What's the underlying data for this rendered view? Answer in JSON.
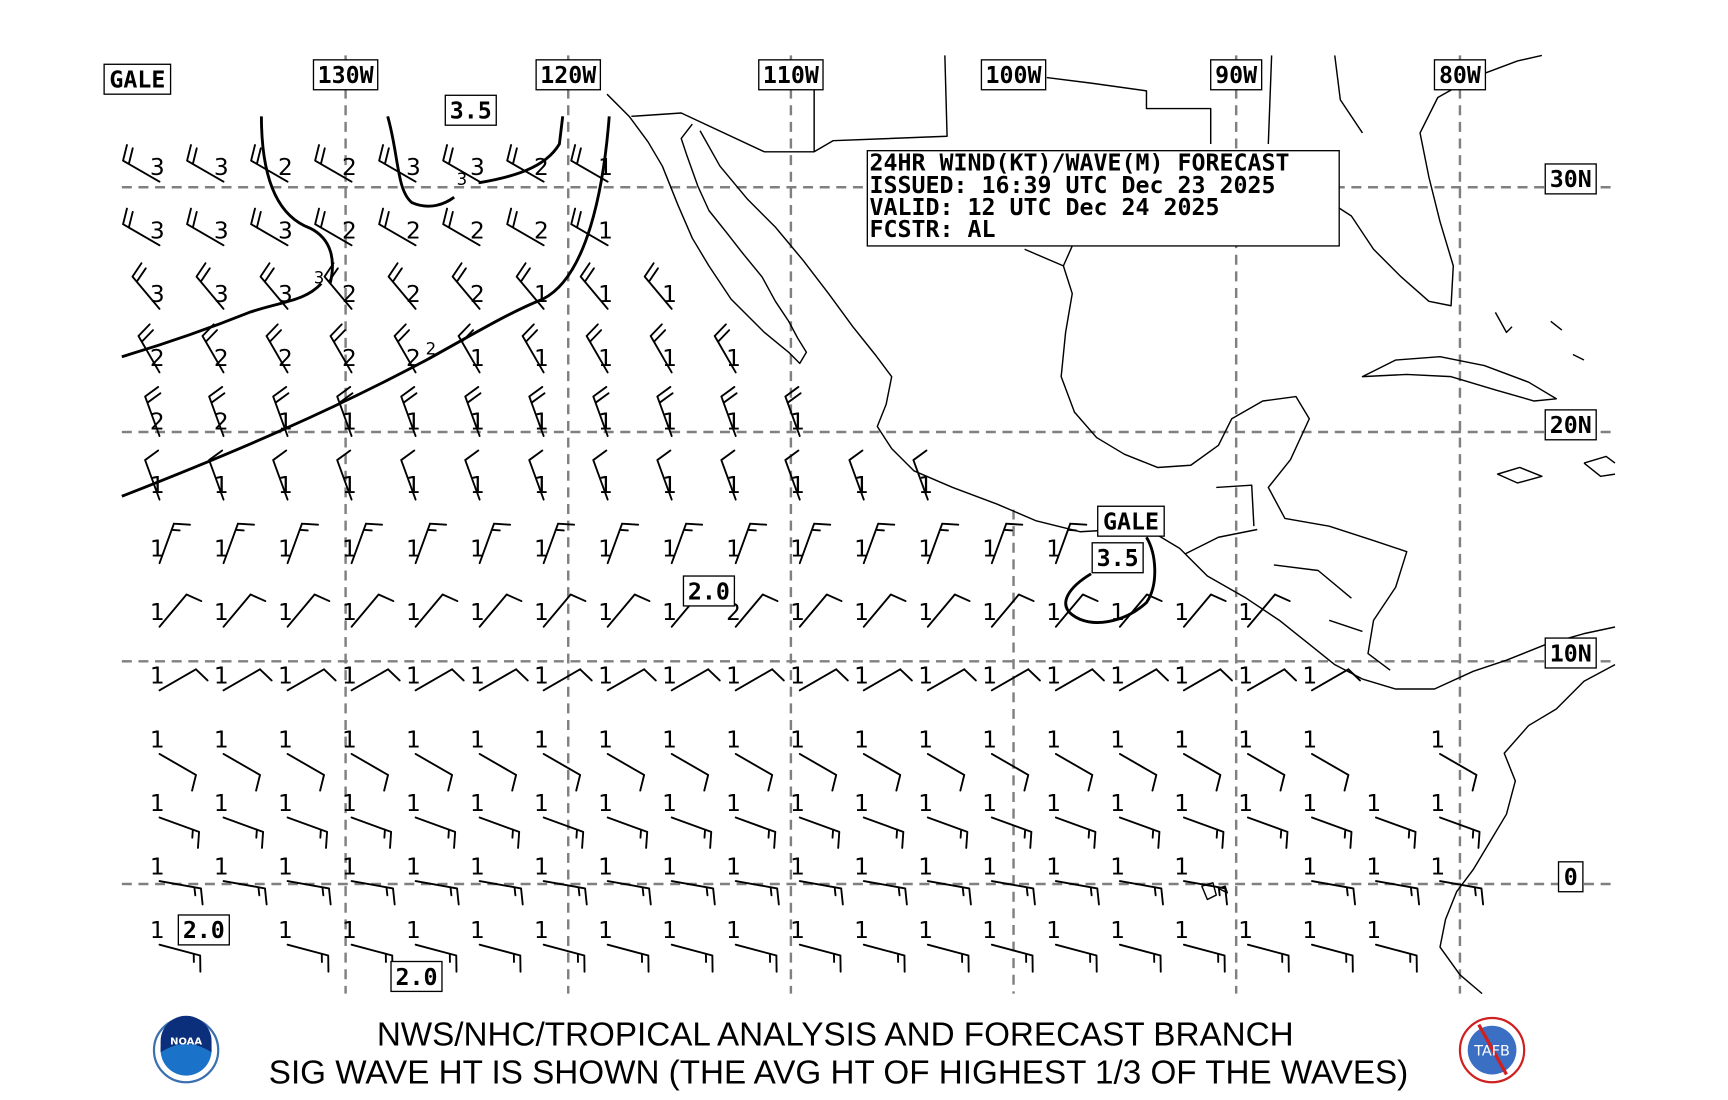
{
  "forecast_box": {
    "line1": "24HR WIND(KT)/WAVE(M) FORECAST",
    "line2": "ISSUED: 16:39 UTC Dec 23 2025",
    "line3": "VALID: 12 UTC Dec 24 2025",
    "line4": "FCSTR: AL"
  },
  "lon_labels": [
    "130W",
    "120W",
    "110W",
    "100W",
    "90W",
    "80W"
  ],
  "lat_labels": [
    "30N",
    "20N",
    "10N",
    "0"
  ],
  "annotations": {
    "gale_nw": "GALE",
    "wave_nw": "3.5",
    "gale_tehuantepec": "GALE",
    "wave_tehuantepec": "3.5",
    "wave_mid": "2.0",
    "wave_sw": "2.0",
    "wave_s": "2.0",
    "contour_label_1": "3",
    "contour_label_2": "3",
    "contour_label_3": "2"
  },
  "wave_heights_m": [
    [
      3,
      3,
      2,
      2,
      3,
      3,
      2,
      1,
      null,
      null,
      null,
      null,
      null,
      null,
      null,
      null,
      null,
      null,
      null,
      null,
      null
    ],
    [
      3,
      3,
      3,
      2,
      2,
      2,
      2,
      1,
      null,
      null,
      null,
      null,
      null,
      null,
      null,
      null,
      null,
      null,
      null,
      null,
      null
    ],
    [
      3,
      3,
      3,
      2,
      2,
      2,
      1,
      1,
      1,
      null,
      null,
      null,
      null,
      null,
      null,
      null,
      null,
      null,
      null,
      null,
      null
    ],
    [
      2,
      2,
      2,
      2,
      2,
      1,
      1,
      1,
      1,
      1,
      null,
      null,
      null,
      null,
      null,
      null,
      null,
      null,
      null,
      null,
      null
    ],
    [
      2,
      2,
      1,
      1,
      1,
      1,
      1,
      1,
      1,
      1,
      1,
      null,
      null,
      null,
      null,
      null,
      null,
      null,
      null,
      null,
      null
    ],
    [
      1,
      1,
      1,
      1,
      1,
      1,
      1,
      1,
      1,
      1,
      1,
      1,
      1,
      null,
      null,
      null,
      null,
      null,
      null,
      null,
      null
    ],
    [
      1,
      1,
      1,
      1,
      1,
      1,
      1,
      1,
      1,
      1,
      1,
      1,
      1,
      1,
      1,
      null,
      null,
      null,
      null,
      null,
      null
    ],
    [
      1,
      1,
      1,
      1,
      1,
      1,
      1,
      1,
      1,
      2,
      1,
      1,
      1,
      1,
      1,
      1,
      1,
      1,
      null,
      null,
      null
    ],
    [
      1,
      1,
      1,
      1,
      1,
      1,
      1,
      1,
      1,
      1,
      1,
      1,
      1,
      1,
      1,
      1,
      1,
      1,
      1,
      null,
      null
    ],
    [
      1,
      1,
      1,
      1,
      1,
      1,
      1,
      1,
      1,
      1,
      1,
      1,
      1,
      1,
      1,
      1,
      1,
      1,
      1,
      null,
      1
    ],
    [
      1,
      1,
      1,
      1,
      1,
      1,
      1,
      1,
      1,
      1,
      1,
      1,
      1,
      1,
      1,
      1,
      1,
      1,
      1,
      1,
      1
    ],
    [
      1,
      1,
      1,
      1,
      1,
      1,
      1,
      1,
      1,
      1,
      1,
      1,
      1,
      1,
      1,
      1,
      1,
      null,
      1,
      1,
      1
    ],
    [
      1,
      null,
      1,
      1,
      1,
      1,
      1,
      1,
      1,
      1,
      1,
      1,
      1,
      1,
      1,
      1,
      1,
      1,
      1,
      1,
      null
    ]
  ],
  "wind_barbs": [
    {
      "dir_deg": 300,
      "speed_kt": 20
    },
    {
      "dir_deg": 300,
      "speed_kt": 20
    },
    {
      "dir_deg": 320,
      "speed_kt": 20
    },
    {
      "dir_deg": 330,
      "speed_kt": 20
    },
    {
      "dir_deg": 340,
      "speed_kt": 20
    },
    {
      "dir_deg": 340,
      "speed_kt": 10
    },
    {
      "dir_deg": 20,
      "speed_kt": 15
    },
    {
      "dir_deg": 40,
      "speed_kt": 10
    },
    {
      "dir_deg": 60,
      "speed_kt": 10
    },
    {
      "dir_deg": 120,
      "speed_kt": 10
    },
    {
      "dir_deg": 110,
      "speed_kt": 15
    },
    {
      "dir_deg": 100,
      "speed_kt": 15
    },
    {
      "dir_deg": 105,
      "speed_kt": 15
    }
  ],
  "footer": {
    "line1": "NWS/NHC/TROPICAL ANALYSIS AND FORECAST BRANCH",
    "line2": "SIG WAVE HT IS SHOWN (THE AVG HT OF HIGHEST 1/3 OF THE WAVES)",
    "noaa_logo_text": "NOAA",
    "tafb_logo_text": "TAFB"
  },
  "colors": {
    "grid": "#808080",
    "noaa_blue": "#1a73c8",
    "tafb_red": "#d02020"
  }
}
